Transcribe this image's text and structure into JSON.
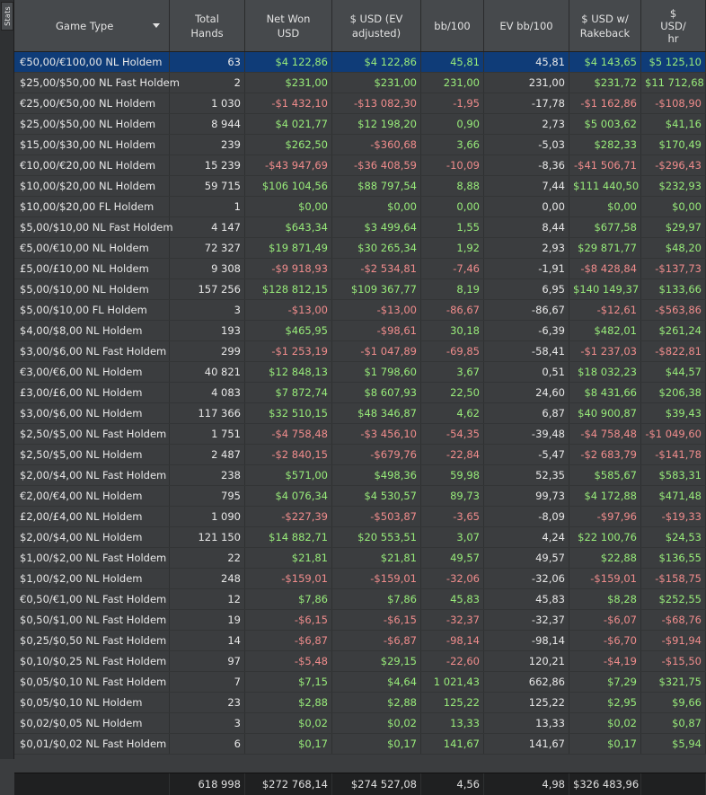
{
  "sidebar": {
    "tab_label": "Stats"
  },
  "columns": [
    {
      "key": "game_type",
      "label": "Game Type"
    },
    {
      "key": "total_hands",
      "label": "Total\nHands"
    },
    {
      "key": "net_won",
      "label": "Net Won\nUSD"
    },
    {
      "key": "usd_ev",
      "label": "$ USD (EV\nadjusted)"
    },
    {
      "key": "bb100",
      "label": "bb/100"
    },
    {
      "key": "ev_bb100",
      "label": "EV bb/100"
    },
    {
      "key": "usd_rakeback",
      "label": "$ USD w/\nRakeback"
    },
    {
      "key": "usd_hr",
      "label": "$\nUSD/\nhr"
    }
  ],
  "selected_row": 0,
  "rows": [
    [
      "€50,00/€100,00 NL Holdem",
      "63",
      "$4 122,86",
      "$4 122,86",
      "45,81",
      "45,81",
      "$4 143,65",
      "$5 125,10"
    ],
    [
      "$25,00/$50,00 NL Fast Holdem",
      "2",
      "$231,00",
      "$231,00",
      "231,00",
      "231,00",
      "$231,72",
      "$11 712,68"
    ],
    [
      "€25,00/€50,00 NL Holdem",
      "1 030",
      "-$1 432,10",
      "-$13 082,30",
      "-1,95",
      "-17,78",
      "-$1 162,86",
      "-$108,90"
    ],
    [
      "$25,00/$50,00 NL Holdem",
      "8 944",
      "$4 021,77",
      "$12 198,20",
      "0,90",
      "2,73",
      "$5 003,62",
      "$41,16"
    ],
    [
      "$15,00/$30,00 NL Holdem",
      "239",
      "$262,50",
      "-$360,68",
      "3,66",
      "-5,03",
      "$282,33",
      "$170,49"
    ],
    [
      "€10,00/€20,00 NL Holdem",
      "15 239",
      "-$43 947,69",
      "-$36 408,59",
      "-10,09",
      "-8,36",
      "-$41 506,71",
      "-$296,43"
    ],
    [
      "$10,00/$20,00 NL Holdem",
      "59 715",
      "$106 104,56",
      "$88 797,54",
      "8,88",
      "7,44",
      "$111 440,50",
      "$232,93"
    ],
    [
      "$10,00/$20,00 FL Holdem",
      "1",
      "$0,00",
      "$0,00",
      "0,00",
      "0,00",
      "$0,00",
      "$0,00"
    ],
    [
      "$5,00/$10,00 NL Fast Holdem",
      "4 147",
      "$643,34",
      "$3 499,64",
      "1,55",
      "8,44",
      "$677,58",
      "$29,97"
    ],
    [
      "€5,00/€10,00 NL Holdem",
      "72 327",
      "$19 871,49",
      "$30 265,34",
      "1,92",
      "2,93",
      "$29 871,77",
      "$48,20"
    ],
    [
      "£5,00/£10,00 NL Holdem",
      "9 308",
      "-$9 918,93",
      "-$2 534,81",
      "-7,46",
      "-1,91",
      "-$8 428,84",
      "-$137,73"
    ],
    [
      "$5,00/$10,00 NL Holdem",
      "157 256",
      "$128 812,15",
      "$109 367,77",
      "8,19",
      "6,95",
      "$140 149,37",
      "$133,66"
    ],
    [
      "$5,00/$10,00 FL Holdem",
      "3",
      "-$13,00",
      "-$13,00",
      "-86,67",
      "-86,67",
      "-$12,61",
      "-$563,86"
    ],
    [
      "$4,00/$8,00 NL Holdem",
      "193",
      "$465,95",
      "-$98,61",
      "30,18",
      "-6,39",
      "$482,01",
      "$261,24"
    ],
    [
      "$3,00/$6,00 NL Fast Holdem",
      "299",
      "-$1 253,19",
      "-$1 047,89",
      "-69,85",
      "-58,41",
      "-$1 237,03",
      "-$822,81"
    ],
    [
      "€3,00/€6,00 NL Holdem",
      "40 821",
      "$12 848,13",
      "$1 798,60",
      "3,67",
      "0,51",
      "$18 032,23",
      "$44,57"
    ],
    [
      "£3,00/£6,00 NL Holdem",
      "4 083",
      "$7 872,74",
      "$8 607,93",
      "22,50",
      "24,60",
      "$8 431,66",
      "$206,38"
    ],
    [
      "$3,00/$6,00 NL Holdem",
      "117 366",
      "$32 510,15",
      "$48 346,87",
      "4,62",
      "6,87",
      "$40 900,87",
      "$39,43"
    ],
    [
      "$2,50/$5,00 NL Fast Holdem",
      "1 751",
      "-$4 758,48",
      "-$3 456,10",
      "-54,35",
      "-39,48",
      "-$4 758,48",
      "-$1 049,60"
    ],
    [
      "$2,50/$5,00 NL Holdem",
      "2 487",
      "-$2 840,15",
      "-$679,76",
      "-22,84",
      "-5,47",
      "-$2 683,79",
      "-$141,78"
    ],
    [
      "$2,00/$4,00 NL Fast Holdem",
      "238",
      "$571,00",
      "$498,36",
      "59,98",
      "52,35",
      "$585,67",
      "$583,31"
    ],
    [
      "€2,00/€4,00 NL Holdem",
      "795",
      "$4 076,34",
      "$4 530,57",
      "89,73",
      "99,73",
      "$4 172,88",
      "$471,48"
    ],
    [
      "£2,00/£4,00 NL Holdem",
      "1 090",
      "-$227,39",
      "-$503,87",
      "-3,65",
      "-8,09",
      "-$97,96",
      "-$19,33"
    ],
    [
      "$2,00/$4,00 NL Holdem",
      "121 150",
      "$14 882,71",
      "$20 553,51",
      "3,07",
      "4,24",
      "$22 100,76",
      "$24,53"
    ],
    [
      "$1,00/$2,00 NL Fast Holdem",
      "22",
      "$21,81",
      "$21,81",
      "49,57",
      "49,57",
      "$22,88",
      "$136,55"
    ],
    [
      "$1,00/$2,00 NL Holdem",
      "248",
      "-$159,01",
      "-$159,01",
      "-32,06",
      "-32,06",
      "-$159,01",
      "-$158,75"
    ],
    [
      "€0,50/€1,00 NL Fast Holdem",
      "12",
      "$7,86",
      "$7,86",
      "45,83",
      "45,83",
      "$8,28",
      "$252,55"
    ],
    [
      "$0,50/$1,00 NL Fast Holdem",
      "19",
      "-$6,15",
      "-$6,15",
      "-32,37",
      "-32,37",
      "-$6,07",
      "-$68,76"
    ],
    [
      "$0,25/$0,50 NL Fast Holdem",
      "14",
      "-$6,87",
      "-$6,87",
      "-98,14",
      "-98,14",
      "-$6,70",
      "-$91,94"
    ],
    [
      "$0,10/$0,25 NL Fast Holdem",
      "97",
      "-$5,48",
      "$29,15",
      "-22,60",
      "120,21",
      "-$4,19",
      "-$15,50"
    ],
    [
      "$0,05/$0,10 NL Fast Holdem",
      "7",
      "$7,15",
      "$4,64",
      "1 021,43",
      "662,86",
      "$7,29",
      "$321,75"
    ],
    [
      "$0,05/$0,10 NL Holdem",
      "23",
      "$2,88",
      "$2,88",
      "125,22",
      "125,22",
      "$2,95",
      "$9,66"
    ],
    [
      "$0,02/$0,05 NL Holdem",
      "3",
      "$0,02",
      "$0,02",
      "13,33",
      "13,33",
      "$0,02",
      "$0,87"
    ],
    [
      "$0,01/$0,02 NL Fast Holdem",
      "6",
      "$0,17",
      "$0,17",
      "141,67",
      "141,67",
      "$0,17",
      "$5,94"
    ]
  ],
  "totals": [
    "",
    "618 998",
    "$272 768,14",
    "$274 527,08",
    "4,56",
    "4,98",
    "$326 483,96",
    ""
  ],
  "colors": {
    "positive": "#98ec7a",
    "negative": "#f08c8c",
    "selected": "#0f3c78"
  }
}
